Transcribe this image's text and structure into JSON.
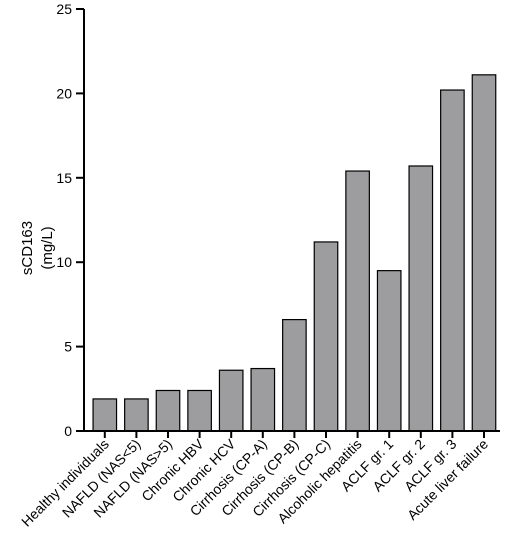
{
  "chart_data": {
    "type": "bar",
    "title": "",
    "xlabel": "",
    "ylabel_lines": [
      "sCD163",
      "(mg/L)"
    ],
    "ylim": [
      0,
      25
    ],
    "yticks": [
      0,
      5,
      10,
      15,
      20,
      25
    ],
    "categories": [
      "Healthy individuals",
      "NAFLD (NAS<5)",
      "NAFLD (NAS>5)",
      "Chronic HBV",
      "Chronic HCV",
      "Cirrhosis (CP-A)",
      "Cirrhosis (CP-B)",
      "Cirrhosis (CP-C)",
      "Alcoholic hepatitis",
      "ACLF gr. 1",
      "ACLF gr. 2",
      "ACLF gr. 3",
      "Acute liver failure"
    ],
    "values": [
      1.9,
      1.9,
      2.4,
      2.4,
      3.6,
      3.7,
      6.6,
      11.2,
      15.4,
      9.5,
      15.7,
      20.2,
      21.1
    ],
    "bar_color": "#9d9d9f",
    "grid": false
  }
}
